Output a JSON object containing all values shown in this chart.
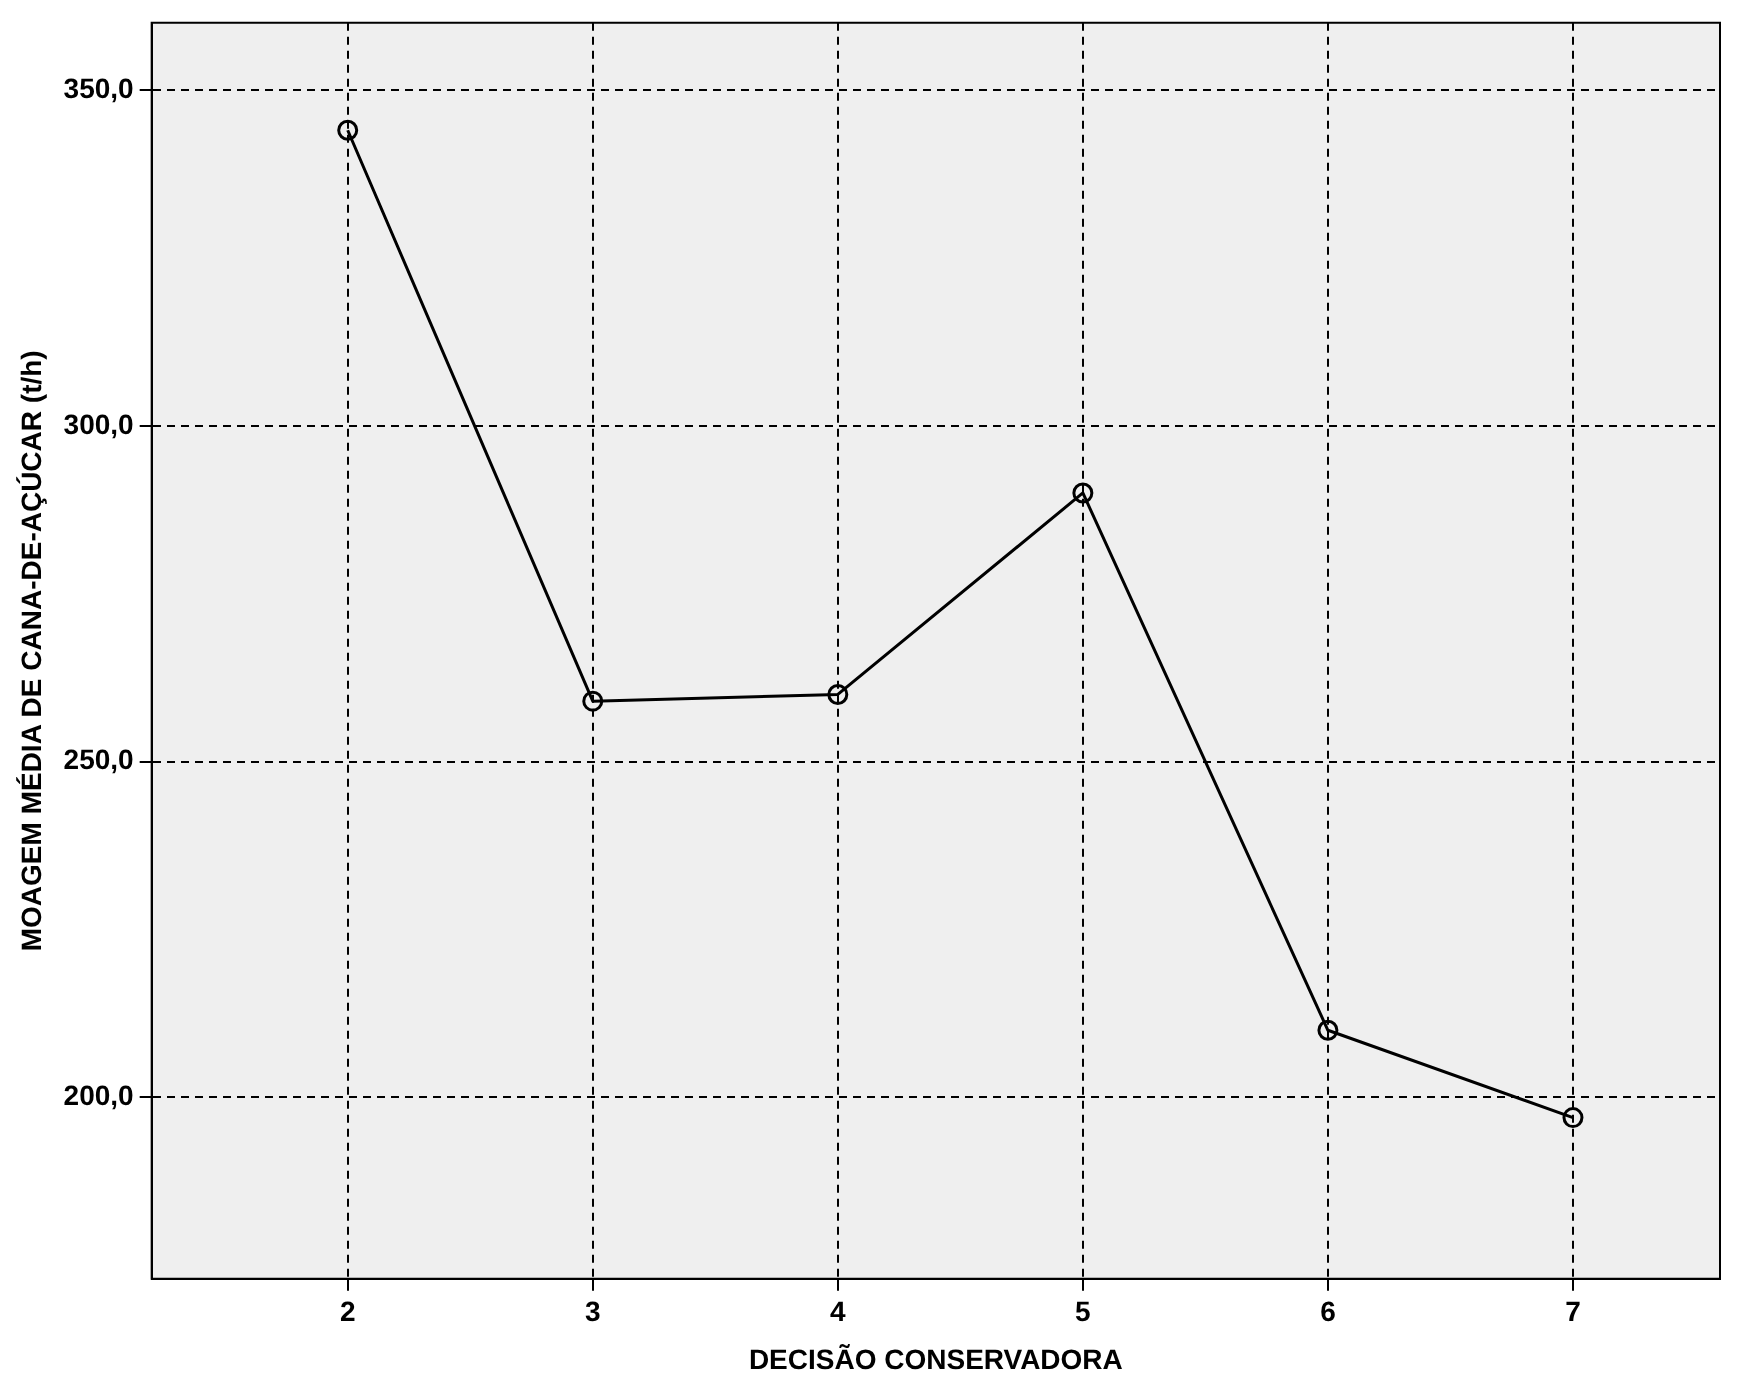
{
  "chart_data": {
    "type": "line",
    "xlabel": "DECISÃO CONSERVADORA",
    "ylabel": "MOAGEM MÉDIA DE CANA-DE-AÇÚCAR (t/h)",
    "x": [
      2,
      3,
      4,
      5,
      6,
      7
    ],
    "series": [
      {
        "color": "#000000",
        "values": [
          344,
          259,
          260,
          290,
          210,
          197
        ]
      }
    ],
    "xlim": [
      1.2,
      7.6
    ],
    "xticks": [
      2,
      3,
      4,
      5,
      6,
      7
    ],
    "ylim": [
      173,
      360
    ],
    "yticks": [
      {
        "value": 200,
        "label": "200,0"
      },
      {
        "value": 250,
        "label": "250,0"
      },
      {
        "value": 300,
        "label": "300,0"
      },
      {
        "value": 350,
        "label": "350,0"
      }
    ],
    "grid": true,
    "legend": false,
    "marker": "circle",
    "line_style": "solid"
  }
}
